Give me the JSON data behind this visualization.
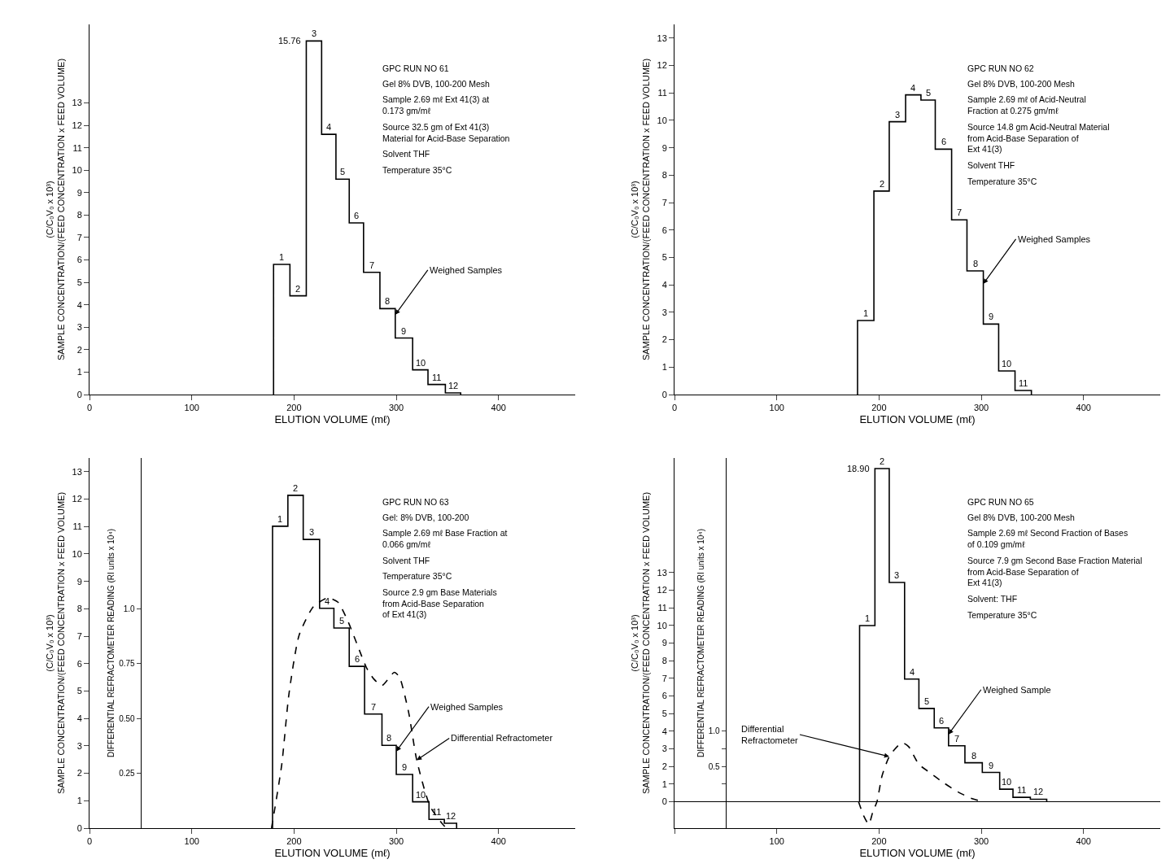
{
  "chart_data": [
    {
      "type": "step",
      "xlabel": "ELUTION VOLUME (mℓ)",
      "ylabel": "(C/C₀V₀ x 10³)\nSAMPLE CONCENTRATION/(FEED CONCENTRATION x FEED VOLUME)",
      "xlim": [
        0,
        475
      ],
      "xticks": [
        0,
        100,
        200,
        300,
        400
      ],
      "ylim": [
        0,
        16.5
      ],
      "yticks": [
        0,
        1,
        2,
        3,
        4,
        5,
        6,
        7,
        8,
        9,
        10,
        11,
        12,
        13
      ],
      "series": [
        {
          "color": "#000000",
          "x": [
            180,
            180,
            196,
            212,
            227,
            241,
            254,
            268,
            284,
            299,
            316,
            331,
            348,
            363
          ],
          "values": [
            0,
            5.8,
            4.4,
            15.76,
            11.6,
            9.6,
            7.65,
            5.45,
            3.83,
            2.52,
            1.1,
            0.45,
            0.07,
            0
          ]
        }
      ],
      "annotations": [
        {
          "text": "1",
          "x": 180,
          "y": 5.8
        },
        {
          "text": "2",
          "x": 196,
          "y": 4.4
        },
        {
          "text": "15.76",
          "x": 212,
          "y": 15.76
        },
        {
          "text": "3",
          "x": 212,
          "y": 15.76
        },
        {
          "text": "4",
          "x": 227,
          "y": 11.6
        },
        {
          "text": "5",
          "x": 241,
          "y": 9.6
        },
        {
          "text": "6",
          "x": 254,
          "y": 7.65
        },
        {
          "text": "7",
          "x": 268,
          "y": 5.45
        },
        {
          "text": "8",
          "x": 284,
          "y": 3.83
        },
        {
          "text": "9",
          "x": 299,
          "y": 2.52
        },
        {
          "text": "10",
          "x": 316,
          "y": 1.1
        },
        {
          "text": "11",
          "x": 331,
          "y": 0.45
        },
        {
          "text": "12",
          "x": 348,
          "y": 0.07
        },
        {
          "text": "Weighed Samples",
          "x": 299,
          "y": 3.56
        },
        "GPC RUN NO 61",
        "Gel 8% DVB, 100-200 Mesh",
        "Sample 2.69 mℓ Ext 41(3) at\n0.173 gm/mℓ",
        "Source 32.5 gm of Ext 41(3)\nMaterial for Acid-Base Separation",
        "Solvent THF",
        "Temperature 35°C"
      ]
    },
    {
      "type": "step",
      "xlabel": "ELUTION VOLUME (mℓ)",
      "ylabel": "(C/C₀V₀ x 10³)\nSAMPLE CONCENTRATION/(FEED CONCENTRATION x FEED VOLUME)",
      "xlim": [
        0,
        475
      ],
      "xticks": [
        0,
        100,
        200,
        300,
        400
      ],
      "ylim": [
        0,
        13.5
      ],
      "yticks": [
        0,
        1,
        2,
        3,
        4,
        5,
        6,
        7,
        8,
        9,
        10,
        11,
        12,
        13
      ],
      "series": [
        {
          "color": "#000000",
          "x": [
            179,
            179,
            195,
            210,
            226,
            241,
            255,
            271,
            286,
            302,
            317,
            333,
            349
          ],
          "values": [
            0,
            2.7,
            7.42,
            9.95,
            10.93,
            10.74,
            8.95,
            6.37,
            4.51,
            2.57,
            0.86,
            0.15,
            0
          ]
        }
      ],
      "annotations": [
        {
          "text": "1",
          "x": 179,
          "y": 2.7
        },
        {
          "text": "2",
          "x": 195,
          "y": 7.42
        },
        {
          "text": "3",
          "x": 210,
          "y": 9.95
        },
        {
          "text": "4",
          "x": 226,
          "y": 10.93
        },
        {
          "text": "5",
          "x": 241,
          "y": 10.74
        },
        {
          "text": "6",
          "x": 255,
          "y": 8.95
        },
        {
          "text": "7",
          "x": 271,
          "y": 6.37
        },
        {
          "text": "8",
          "x": 286,
          "y": 4.51
        },
        {
          "text": "9",
          "x": 302,
          "y": 2.57
        },
        {
          "text": "10",
          "x": 317,
          "y": 0.86
        },
        {
          "text": "11",
          "x": 333,
          "y": 0.15
        },
        {
          "text": "Weighed Samples",
          "x": 302,
          "y": 4.04
        },
        "GPC RUN NO 62",
        "Gel 8% DVB, 100-200 Mesh",
        "Sample 2.69 mℓ of Acid-Neutral\nFraction at 0.275 gm/mℓ",
        "Source 14.8 gm Acid-Neutral Material\nfrom Acid-Base Separation of\nExt 41(3)",
        "Solvent THF",
        "Temperature 35°C"
      ]
    },
    {
      "type": "step",
      "xlabel": "ELUTION VOLUME (mℓ)",
      "ylabel": "(C/C₀V₀ x 10³)\nSAMPLE CONCENTRATION/(FEED CONCENTRATION x FEED VOLUME)",
      "y2label": "DIFFERENTIAL REFRACTOMETER READING (RI units x 10⁴)",
      "xlim": [
        0,
        475
      ],
      "xticks": [
        0,
        100,
        200,
        300,
        400
      ],
      "ylim": [
        0,
        13.5
      ],
      "yticks": [
        0,
        1,
        2,
        3,
        4,
        5,
        6,
        7,
        8,
        9,
        10,
        11,
        12,
        13
      ],
      "y2lim": [
        0,
        1.6875
      ],
      "y2ticks": [
        0.25,
        {
          "value": 0.5,
          "label": "0.50"
        },
        0.75,
        {
          "value": 1,
          "label": "1.0"
        }
      ],
      "series": [
        {
          "color": "#000000",
          "x": [
            179,
            179,
            194,
            209,
            225,
            239,
            254,
            269,
            286,
            300,
            316,
            332,
            347,
            359
          ],
          "values": [
            0,
            11.01,
            12.14,
            10.53,
            8.02,
            7.3,
            5.9,
            4.16,
            3.02,
            1.96,
            0.96,
            0.32,
            0.18,
            0
          ]
        },
        {
          "type": "line",
          "axis": "y2",
          "line_style": "dashed",
          "color": "#000000",
          "x": [
            178,
            188,
            195,
            205,
            219,
            233,
            243,
            253,
            264,
            271,
            278,
            286,
            298,
            303,
            312,
            320,
            333,
            347,
            352
          ],
          "values": [
            0,
            0.29,
            0.61,
            0.88,
            1.01,
            1.05,
            1.03,
            0.94,
            0.81,
            0.73,
            0.68,
            0.65,
            0.71,
            0.69,
            0.53,
            0.31,
            0.1,
            0.01,
            0
          ]
        }
      ],
      "annotations": [
        {
          "text": "1",
          "x": 179,
          "y": 11.01
        },
        {
          "text": "2",
          "x": 194,
          "y": 12.14
        },
        {
          "text": "3",
          "x": 209,
          "y": 10.53
        },
        {
          "text": "4",
          "x": 225,
          "y": 8.02
        },
        {
          "text": "5",
          "x": 239,
          "y": 7.3
        },
        {
          "text": "6",
          "x": 254,
          "y": 5.9
        },
        {
          "text": "7",
          "x": 269,
          "y": 4.16
        },
        {
          "text": "8",
          "x": 286,
          "y": 3.02
        },
        {
          "text": "9",
          "x": 300,
          "y": 1.96
        },
        {
          "text": "10",
          "x": 316,
          "y": 0.96
        },
        {
          "text": "11",
          "x": 332,
          "y": 0.32
        },
        {
          "text": "12",
          "x": 347,
          "y": 0.18
        },
        {
          "text": "Weighed Samples",
          "x": 300,
          "y": 2.8
        },
        {
          "text": "Differential Refractometer",
          "x": 320,
          "y": 2.48
        },
        "GPC RUN NO 63",
        "Gel: 8% DVB, 100-200",
        "Sample 2.69 mℓ Base Fraction at\n0.066 gm/mℓ",
        "Solvent THF",
        "Temperature 35°C",
        "Source 2.9 gm Base Materials\nfrom Acid-Base Separation\nof Ext 41(3)"
      ]
    },
    {
      "type": "step",
      "xlabel": "ELUTION VOLUME (mℓ)",
      "ylabel": "(C/C₀V₀ x 10³)\nSAMPLE CONCENTRATION/(FEED CONCENTRATION x FEED VOLUME)",
      "y2label": "DIFFERENTIAL REFRACTOMETER READING (RI units x 10⁴)",
      "xlim": [
        0,
        475
      ],
      "xticks": [
        {
          "value": 0,
          "label": null
        },
        100,
        200,
        300,
        400
      ],
      "ylim": [
        -1.5,
        19.5
      ],
      "yticks": [
        0,
        1,
        2,
        3,
        4,
        5,
        6,
        7,
        8,
        9,
        10,
        11,
        12,
        13
      ],
      "y2lim": [
        -0.375,
        4.875
      ],
      "y2ticks": [
        {
          "value": 0.25,
          "label": null
        },
        0.5,
        {
          "value": 0.75,
          "label": null
        },
        {
          "value": 1,
          "label": "1.0"
        }
      ],
      "series": [
        {
          "color": "#000000",
          "x": [
            181,
            181,
            196,
            210,
            225,
            239,
            254,
            268,
            284,
            301,
            318,
            331,
            348,
            364
          ],
          "values": [
            0,
            9.99,
            18.9,
            12.44,
            6.96,
            5.29,
            4.19,
            3.17,
            2.21,
            1.66,
            0.71,
            0.25,
            0.14,
            0
          ]
        },
        {
          "type": "line",
          "axis": "y2",
          "line_style": "dashed",
          "color": "#000000",
          "x": [
            180,
            185,
            190,
            194,
            198,
            203,
            210,
            219,
            224,
            229,
            239,
            250,
            263,
            277,
            290,
            301
          ],
          "values": [
            0,
            -0.2,
            -0.32,
            -0.14,
            0,
            0.37,
            0.64,
            0.8,
            0.83,
            0.78,
            0.53,
            0.41,
            0.27,
            0.14,
            0.05,
            0
          ]
        }
      ],
      "annotations": [
        {
          "text": "1",
          "x": 181,
          "y": 9.99
        },
        {
          "text": "18.90",
          "x": 196,
          "y": 18.9
        },
        {
          "text": "2",
          "x": 196,
          "y": 18.9
        },
        {
          "text": "3",
          "x": 210,
          "y": 12.44
        },
        {
          "text": "4",
          "x": 225,
          "y": 6.96
        },
        {
          "text": "5",
          "x": 239,
          "y": 5.29
        },
        {
          "text": "6",
          "x": 254,
          "y": 4.19
        },
        {
          "text": "7",
          "x": 268,
          "y": 3.17
        },
        {
          "text": "8",
          "x": 284,
          "y": 2.21
        },
        {
          "text": "9",
          "x": 301,
          "y": 1.66
        },
        {
          "text": "10",
          "x": 318,
          "y": 0.71
        },
        {
          "text": "11",
          "x": 331,
          "y": 0.25
        },
        {
          "text": "12",
          "x": 348,
          "y": 0.14
        },
        {
          "text": "Weighed Sample",
          "x": 268,
          "y": 3.82
        },
        {
          "text": "Differential\nRefractometer",
          "x": 210,
          "y": 2.56
        },
        "GPC RUN NO 65",
        "Gel 8% DVB, 100-200 Mesh",
        "Sample 2.69 mℓ Second Fraction of Bases\nof 0.109 gm/mℓ",
        "Source 7.9 gm Second Base Fraction Material\nfrom Acid-Base Separation of\nExt 41(3)",
        "Solvent: THF",
        "Temperature 35°C"
      ]
    }
  ]
}
